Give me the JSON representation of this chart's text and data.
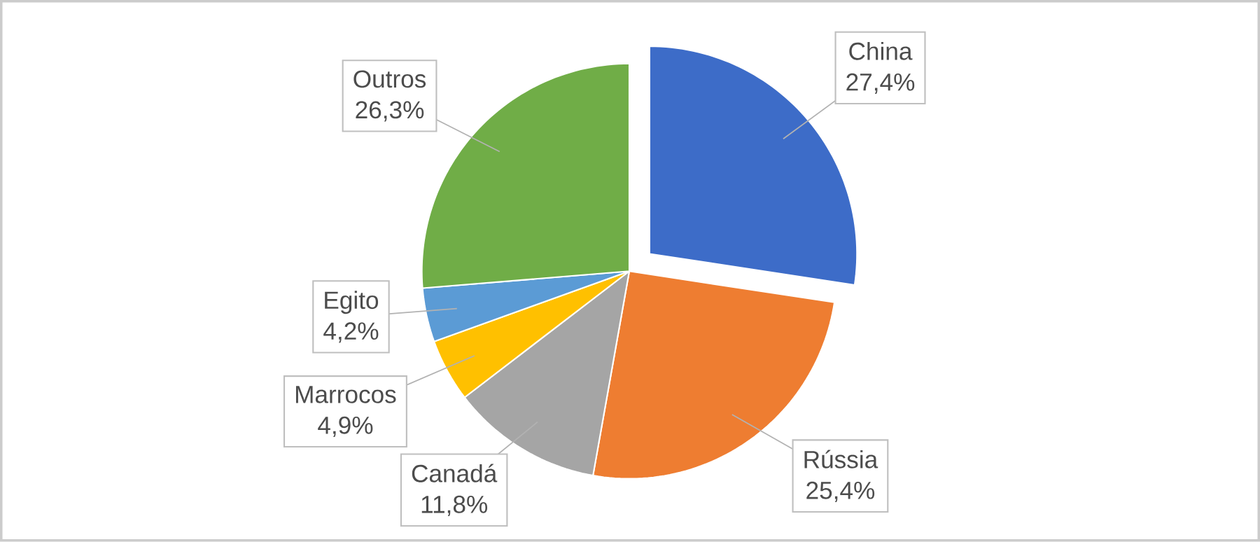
{
  "chart_data": {
    "type": "pie",
    "categories": [
      "China",
      "Rússia",
      "Canadá",
      "Marrocos",
      "Egito",
      "Outros"
    ],
    "values": [
      27.4,
      25.4,
      11.8,
      4.9,
      4.2,
      26.3
    ],
    "value_labels": [
      "27,4%",
      "25,4%",
      "11,8%",
      "4,9%",
      "4,2%",
      "26,3%"
    ],
    "colors": [
      "#3d6cc8",
      "#ee7d31",
      "#a5a5a5",
      "#ffc000",
      "#5b9bd5",
      "#70ad47"
    ]
  }
}
